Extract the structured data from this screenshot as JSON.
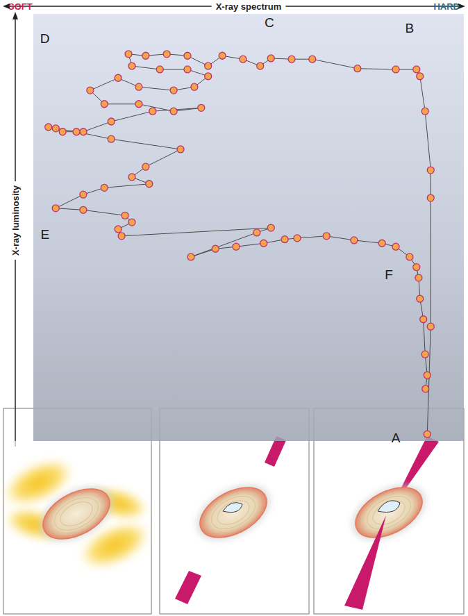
{
  "chart_data": {
    "type": "line",
    "marker": "circle",
    "color": "#f2a54a",
    "x_label": "X-ray spectrum",
    "x_end_labels": [
      "SOFT",
      "HARD"
    ],
    "x_end_colors": [
      "#cc1f55",
      "#2b6a8a"
    ],
    "y_label": "X-ray luminosity",
    "xlim": [
      0,
      100
    ],
    "ylim": [
      0,
      100
    ],
    "tick_labels": false,
    "grid": false,
    "x": [
      91.5,
      92.3,
      92.3,
      92.3,
      91.0,
      89.8,
      89.0,
      84.2,
      75.3,
      64.8,
      60.0,
      55.2,
      52.7,
      48.7,
      43.9,
      40.6,
      35.8,
      31.0,
      26.1,
      22.1,
      22.9,
      29.4,
      35.8,
      40.6,
      37.4,
      32.6,
      24.5,
      19.7,
      13.2,
      16.5,
      24.5,
      32.6,
      39.0,
      27.7,
      18.1,
      11.6,
      6.8,
      3.5,
      5.2,
      10.0,
      18.1,
      34.2,
      26.1,
      22.9,
      26.9,
      16.5,
      11.6,
      5.2,
      11.6,
      21.3,
      22.9,
      19.7,
      20.5,
      55.2,
      51.9,
      36.6,
      42.3,
      47.1,
      53.5,
      58.4,
      61.3,
      68.1,
      74.5,
      81.0,
      84.2,
      87.4,
      89.0,
      89.5,
      89.8,
      90.6,
      91.0,
      91.5,
      91.1
    ],
    "values": [
      1.6,
      26.8,
      56.9,
      63.4,
      77.2,
      85.4,
      87.0,
      87.0,
      87.2,
      89.4,
      89.4,
      89.6,
      87.8,
      89.4,
      90.2,
      87.8,
      90.2,
      90.6,
      90.2,
      90.6,
      87.8,
      87.0,
      87.0,
      85.4,
      82.9,
      82.1,
      82.9,
      85.0,
      82.1,
      78.9,
      78.9,
      77.2,
      78.0,
      77.2,
      74.8,
      72.4,
      72.4,
      73.5,
      73.2,
      72.4,
      70.7,
      68.3,
      64.2,
      61.8,
      60.2,
      59.3,
      57.7,
      54.5,
      54.1,
      52.8,
      51.2,
      49.6,
      48.0,
      49.9,
      48.8,
      43.1,
      45.0,
      45.5,
      46.3,
      47.2,
      47.5,
      48.0,
      47.0,
      46.3,
      45.5,
      43.1,
      40.7,
      38.2,
      33.3,
      28.5,
      20.3,
      15.4,
      12.2
    ],
    "annotations": [
      {
        "text": "A",
        "x": 84.2,
        "y": 0.8
      },
      {
        "text": "B",
        "x": 87.4,
        "y": 96.7
      },
      {
        "text": "C",
        "x": 54.8,
        "y": 98.0
      },
      {
        "text": "D",
        "x": 2.7,
        "y": 94.3
      },
      {
        "text": "E",
        "x": 2.7,
        "y": 48.3
      },
      {
        "text": "F",
        "x": 82.6,
        "y": 39.0
      }
    ]
  }
}
